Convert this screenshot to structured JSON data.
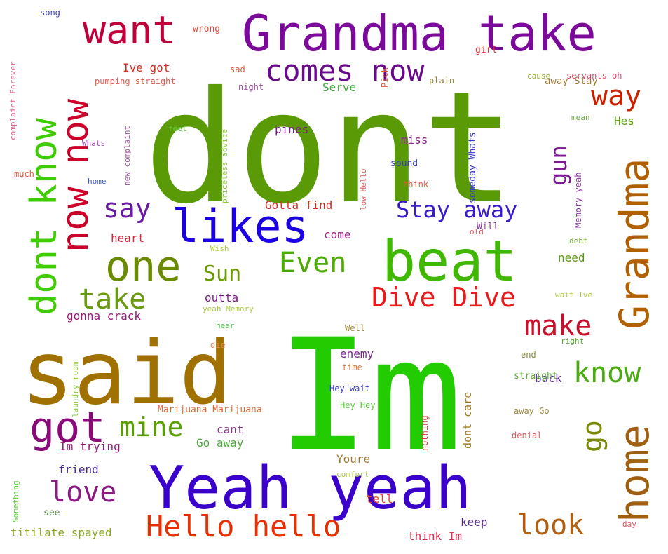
{
  "words": [
    {
      "text": "dont",
      "color": "#5a9a07"
    },
    {
      "text": "Im",
      "color": "#22cc00"
    },
    {
      "text": "said",
      "color": "#a07000"
    },
    {
      "text": "Grandma take",
      "color": "#7b0a9b"
    },
    {
      "text": "Yeah yeah",
      "color": "#3a00cc"
    },
    {
      "text": "beat",
      "color": "#3fb800"
    },
    {
      "text": "likes",
      "color": "#1a00e0"
    },
    {
      "text": "Grandma",
      "color": "#b06000"
    },
    {
      "text": "home",
      "color": "#a06010"
    },
    {
      "text": "want",
      "color": "#c0003a"
    },
    {
      "text": "dont know",
      "color": "#3fcc00"
    },
    {
      "text": "now now",
      "color": "#cc002a"
    },
    {
      "text": "comes now",
      "color": "#6a0a8a"
    },
    {
      "text": "one",
      "color": "#6a8a00"
    },
    {
      "text": "got",
      "color": "#8a0a7a"
    },
    {
      "text": "Hello hello",
      "color": "#e83000"
    },
    {
      "text": "way",
      "color": "#cc2000"
    },
    {
      "text": "say",
      "color": "#6a1aa0"
    },
    {
      "text": "take",
      "color": "#6a9a10"
    },
    {
      "text": "Even",
      "color": "#4caa00"
    },
    {
      "text": "Sun",
      "color": "#6a9a00"
    },
    {
      "text": "Dive Dive",
      "color": "#e81a1a"
    },
    {
      "text": "Stay away",
      "color": "#3a1acc"
    },
    {
      "text": "make",
      "color": "#c8102a"
    },
    {
      "text": "know",
      "color": "#4aaa10"
    },
    {
      "text": "mine",
      "color": "#5aa000"
    },
    {
      "text": "love",
      "color": "#8a1a80"
    },
    {
      "text": "look",
      "color": "#b06010"
    },
    {
      "text": "go",
      "color": "#7a8a00"
    },
    {
      "text": "gun",
      "color": "#7a1a90"
    },
    {
      "text": "Ive got",
      "color": "#cc3020"
    },
    {
      "text": "Serve",
      "color": "#3aaa3a"
    },
    {
      "text": "pines",
      "color": "#7a1a8a"
    },
    {
      "text": "miss",
      "color": "#8a2a8a"
    },
    {
      "text": "Hes",
      "color": "#5aa010"
    },
    {
      "text": "Gotta find",
      "color": "#e02a20"
    },
    {
      "text": "heart",
      "color": "#e0203a"
    },
    {
      "text": "come",
      "color": "#a02a8a"
    },
    {
      "text": "outta",
      "color": "#7a1a8a"
    },
    {
      "text": "gonna crack",
      "color": "#9a1a7a"
    },
    {
      "text": "enemy",
      "color": "#7a2a90"
    },
    {
      "text": "back",
      "color": "#5a2a90"
    },
    {
      "text": "need",
      "color": "#5a9a1a"
    },
    {
      "text": "cant",
      "color": "#8a3a8a"
    },
    {
      "text": "Go away",
      "color": "#4aaa3a"
    },
    {
      "text": "Im trying",
      "color": "#9a1a7a"
    },
    {
      "text": "friend",
      "color": "#4a2aa0"
    },
    {
      "text": "Youre",
      "color": "#a07a3a"
    },
    {
      "text": "dont care",
      "color": "#a07a20"
    },
    {
      "text": "tell",
      "color": "#e0403a"
    },
    {
      "text": "keep",
      "color": "#5a2a90"
    },
    {
      "text": "think Im",
      "color": "#e02a4a"
    },
    {
      "text": "titilate spayed",
      "color": "#8aaa2a"
    },
    {
      "text": "Marijuana Marijuana",
      "color": "#e06a3a"
    },
    {
      "text": "pumping straight",
      "color": "#e05a4a"
    },
    {
      "text": "wrong",
      "color": "#e04a3a"
    },
    {
      "text": "girl",
      "color": "#e03a3a"
    },
    {
      "text": "away Stay",
      "color": "#a07a3a"
    },
    {
      "text": "song",
      "color": "#3a3acc"
    },
    {
      "text": "sad",
      "color": "#e05a3a"
    },
    {
      "text": "night",
      "color": "#9a4a9a"
    },
    {
      "text": "plain",
      "color": "#9a8a3a"
    },
    {
      "text": "cause",
      "color": "#9aaa3a"
    },
    {
      "text": "servants oh",
      "color": "#e04a6a"
    },
    {
      "text": "mean",
      "color": "#6aaa3a"
    },
    {
      "text": "Whats",
      "color": "#8a3aa0"
    },
    {
      "text": "feel",
      "color": "#5acc3a"
    },
    {
      "text": "much",
      "color": "#e05a3a"
    },
    {
      "text": "home",
      "color": "#3a5acc"
    },
    {
      "text": "sound",
      "color": "#3a3acc"
    },
    {
      "text": "think",
      "color": "#e05a3a"
    },
    {
      "text": "old",
      "color": "#e05a5a"
    },
    {
      "text": "Will",
      "color": "#8a3aa0"
    },
    {
      "text": "debt",
      "color": "#7aaa3a"
    },
    {
      "text": "Wish",
      "color": "#aacc3a"
    },
    {
      "text": "wait Ive",
      "color": "#aacc3a"
    },
    {
      "text": "yeah Memory",
      "color": "#aacc3a"
    },
    {
      "text": "hear",
      "color": "#4acc4a"
    },
    {
      "text": "die",
      "color": "#e08a5a"
    },
    {
      "text": "Well",
      "color": "#a08a3a"
    },
    {
      "text": "time",
      "color": "#e07a3a"
    },
    {
      "text": "Hey wait",
      "color": "#3a3acc"
    },
    {
      "text": "Hey Hey",
      "color": "#5acc3a"
    },
    {
      "text": "right",
      "color": "#5aaa3a"
    },
    {
      "text": "end",
      "color": "#8a8a3a"
    },
    {
      "text": "straight",
      "color": "#5aaa3a"
    },
    {
      "text": "away Go",
      "color": "#a08a3a"
    },
    {
      "text": "denial",
      "color": "#e05a5a"
    },
    {
      "text": "comfort",
      "color": "#aacc3a"
    },
    {
      "text": "see",
      "color": "#5a8a3a"
    },
    {
      "text": "day",
      "color": "#e05a5a"
    },
    {
      "text": "complaint Forever",
      "color": "#e05a8a"
    },
    {
      "text": "new complaint",
      "color": "#a05aa0"
    },
    {
      "text": "priceless advice",
      "color": "#8acc3a"
    },
    {
      "text": "low Hello",
      "color": "#e05a5a"
    },
    {
      "text": "Pick",
      "color": "#e05a3a"
    },
    {
      "text": "someday Whats",
      "color": "#3a3acc"
    },
    {
      "text": "Memory yeah",
      "color": "#8a3aa0"
    },
    {
      "text": "laundry room",
      "color": "#8acc3a"
    },
    {
      "text": "nothing",
      "color": "#e03a3a"
    },
    {
      "text": "Something",
      "color": "#5acc3a"
    }
  ]
}
